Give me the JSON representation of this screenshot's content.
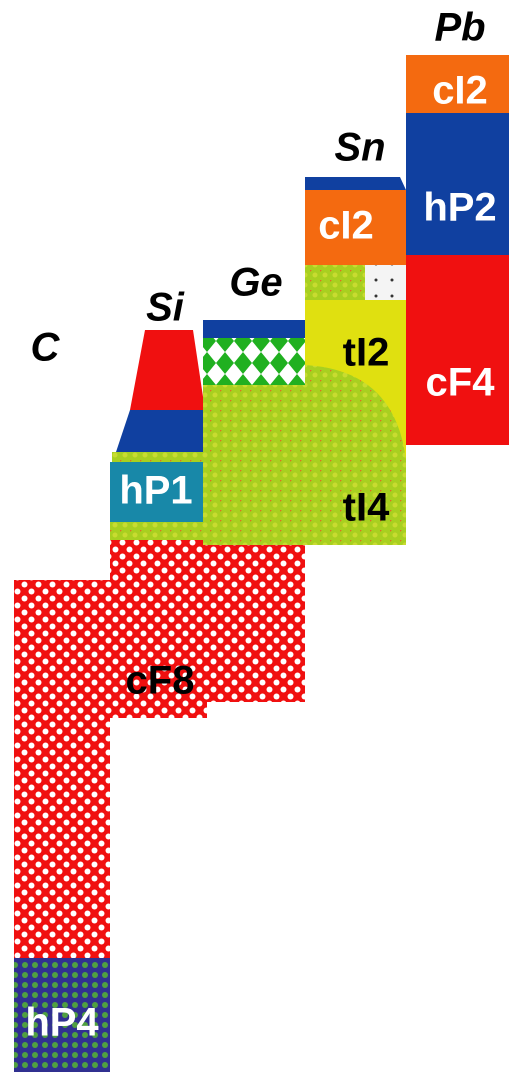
{
  "columns": [
    {
      "element": "C",
      "phases": [
        "hP4"
      ]
    },
    {
      "element": "Si",
      "phases": [
        "hP1",
        "cF8"
      ]
    },
    {
      "element": "Ge",
      "phases": []
    },
    {
      "element": "Sn",
      "phases": [
        "cI2",
        "tI2",
        "tI4"
      ]
    },
    {
      "element": "Pb",
      "phases": [
        "cI2",
        "hP2",
        "cF4"
      ]
    }
  ]
}
